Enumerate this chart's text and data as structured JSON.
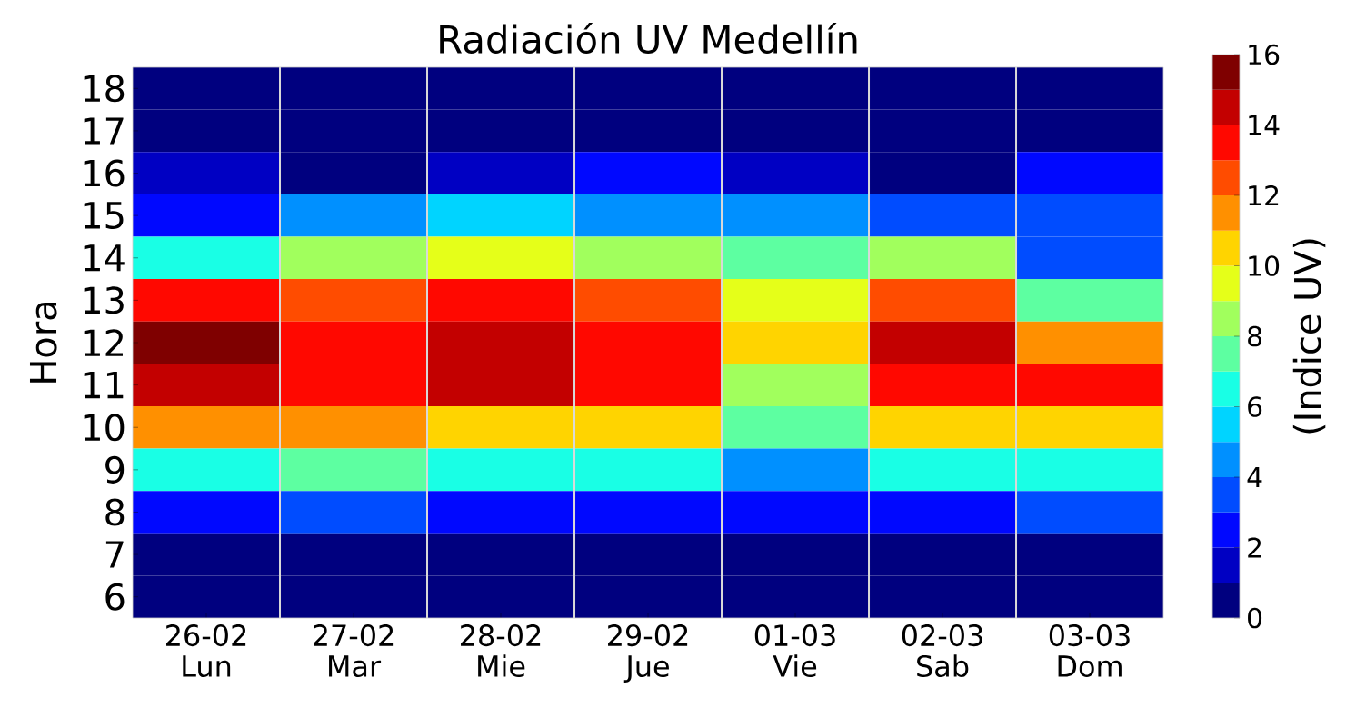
{
  "chart_data": {
    "type": "heatmap",
    "title": "Radiación UV Medellín",
    "ylabel": "Hora",
    "clabel": "(Indice UV)",
    "categories": [
      "26-02 Lun",
      "27-02 Mar",
      "28-02 Mie",
      "29-02 Jue",
      "01-03 Vie",
      "02-03 Sab",
      "03-03 Dom"
    ],
    "y_categories": [
      "18",
      "17",
      "16",
      "15",
      "14",
      "13",
      "12",
      "11",
      "10",
      "9",
      "8",
      "7",
      "6"
    ],
    "cells": [
      [
        0.5,
        0.5,
        0.5,
        0.5,
        0.5,
        0.5,
        0.5
      ],
      [
        0.5,
        0.5,
        0.5,
        0.5,
        0.5,
        0.5,
        0.5
      ],
      [
        1.5,
        0.5,
        1.5,
        2.5,
        1.5,
        0.5,
        2.5
      ],
      [
        2.5,
        4.5,
        5.5,
        4.5,
        4.5,
        3.5,
        3.5
      ],
      [
        6.5,
        8.5,
        9.5,
        8.5,
        7.5,
        8.5,
        3.5
      ],
      [
        13.5,
        12.5,
        13.5,
        12.5,
        9.5,
        12.5,
        7.5
      ],
      [
        15.5,
        13.5,
        14.5,
        13.5,
        10.5,
        14.5,
        11.5
      ],
      [
        14.5,
        13.5,
        14.5,
        13.5,
        8.5,
        13.5,
        13.5
      ],
      [
        11.5,
        11.5,
        10.5,
        10.5,
        7.5,
        10.5,
        10.5
      ],
      [
        6.5,
        7.5,
        6.5,
        6.5,
        4.5,
        6.5,
        6.5
      ],
      [
        2.5,
        3.5,
        2.5,
        2.5,
        2.5,
        2.5,
        3.5
      ],
      [
        0.5,
        0.5,
        0.5,
        0.5,
        0.5,
        0.5,
        0.5
      ],
      [
        0.5,
        0.5,
        0.5,
        0.5,
        0.5,
        0.5,
        0.5
      ]
    ],
    "clim": [
      0,
      16
    ],
    "cticks": [
      0,
      2,
      4,
      6,
      8,
      10,
      12,
      14,
      16
    ]
  }
}
